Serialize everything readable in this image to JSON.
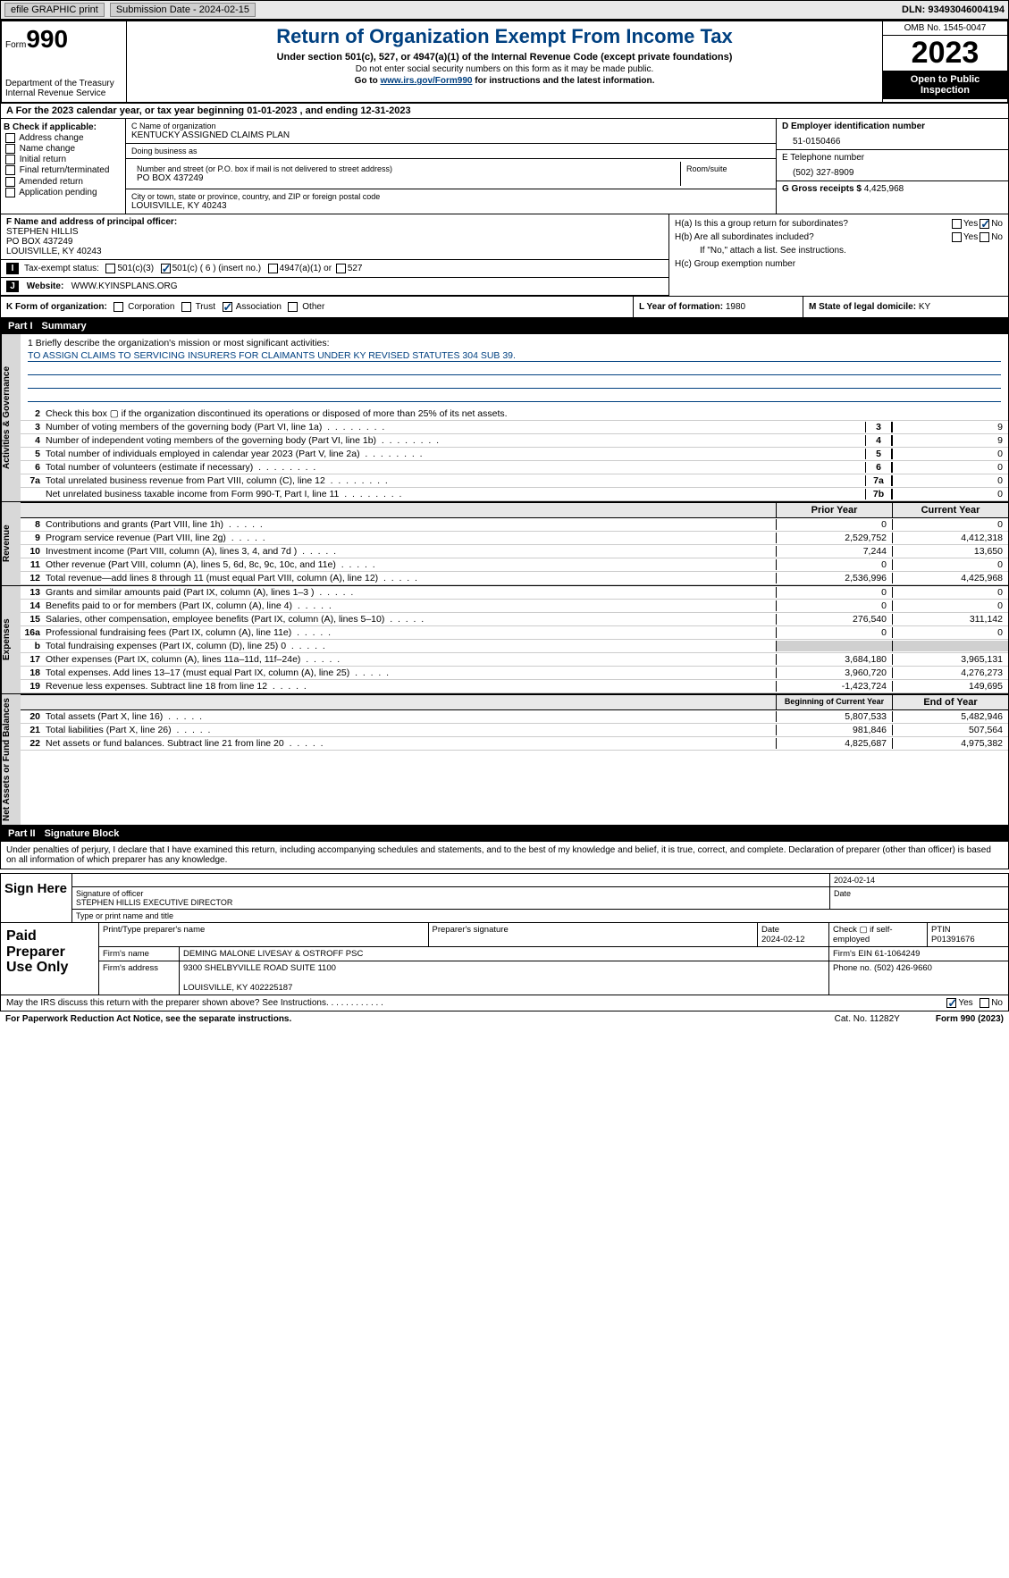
{
  "topbar": {
    "efile": "efile GRAPHIC print",
    "subdate_lbl": "Submission Date - ",
    "subdate": "2024-02-15",
    "dln_lbl": "DLN: ",
    "dln": "93493046004194"
  },
  "header": {
    "form_lbl": "Form",
    "form_no": "990",
    "dept": "Department of the Treasury\nInternal Revenue Service",
    "title": "Return of Organization Exempt From Income Tax",
    "sub": "Under section 501(c), 527, or 4947(a)(1) of the Internal Revenue Code (except private foundations)",
    "note1": "Do not enter social security numbers on this form as it may be made public.",
    "note2_pre": "Go to ",
    "note2_link": "www.irs.gov/Form990",
    "note2_post": " for instructions and the latest information.",
    "omb": "OMB No. 1545-0047",
    "year": "2023",
    "open": "Open to Public Inspection"
  },
  "rowA": {
    "text": "A For the 2023 calendar year, or tax year beginning 01-01-2023   , and ending 12-31-2023"
  },
  "colB": {
    "hdr": "B Check if applicable:",
    "items": [
      "Address change",
      "Name change",
      "Initial return",
      "Final return/terminated",
      "Amended return",
      "Application pending"
    ]
  },
  "colC": {
    "name_lbl": "C Name of organization",
    "name": "KENTUCKY ASSIGNED CLAIMS PLAN",
    "dba_lbl": "Doing business as",
    "dba": "",
    "street_lbl": "Number and street (or P.O. box if mail is not delivered to street address)",
    "street": "PO BOX 437249",
    "room_lbl": "Room/suite",
    "room": "",
    "city_lbl": "City or town, state or province, country, and ZIP or foreign postal code",
    "city": "LOUISVILLE, KY  40243"
  },
  "colD": {
    "ein_lbl": "D Employer identification number",
    "ein": "51-0150466",
    "tel_lbl": "E Telephone number",
    "tel": "(502) 327-8909",
    "gross_lbl": "G Gross receipts $ ",
    "gross": "4,425,968"
  },
  "officer": {
    "lbl": "F  Name and address of principal officer:",
    "name": "STEPHEN HILLIS",
    "street": "PO BOX 437249",
    "city": "LOUISVILLE, KY  40243"
  },
  "groupH": {
    "ha": "H(a)  Is this a group return for subordinates?",
    "hb": "H(b)  Are all subordinates included?",
    "hb_note": "If \"No,\" attach a list. See instructions.",
    "hc": "H(c)  Group exemption number",
    "yes": "Yes",
    "no": "No"
  },
  "taxI": {
    "lbl": "Tax-exempt status:",
    "o1": "501(c)(3)",
    "o2": "501(c) ( 6 ) (insert no.)",
    "o3": "4947(a)(1) or",
    "o4": "527"
  },
  "webJ": {
    "lbl": "Website:",
    "val": "WWW.KYINSPLANS.ORG"
  },
  "rowK": {
    "lbl": "K Form of organization:",
    "opts": [
      "Corporation",
      "Trust",
      "Association",
      "Other"
    ],
    "checked": 2
  },
  "rowL": {
    "lbl": "L Year of formation: ",
    "val": "1980"
  },
  "rowM": {
    "lbl": "M State of legal domicile: ",
    "val": "KY"
  },
  "part1": {
    "lbl": "Part I",
    "title": "Summary"
  },
  "mission": {
    "q": "1  Briefly describe the organization's mission or most significant activities:",
    "text": "TO ASSIGN CLAIMS TO SERVICING INSURERS FOR CLAIMANTS UNDER KY REVISED STATUTES 304 SUB 39."
  },
  "gov_lines": [
    {
      "n": "2",
      "t": "Check this box  ▢  if the organization discontinued its operations or disposed of more than 25% of its net assets."
    },
    {
      "n": "3",
      "t": "Number of voting members of the governing body (Part VI, line 1a)",
      "box": "3",
      "v": "9"
    },
    {
      "n": "4",
      "t": "Number of independent voting members of the governing body (Part VI, line 1b)",
      "box": "4",
      "v": "9"
    },
    {
      "n": "5",
      "t": "Total number of individuals employed in calendar year 2023 (Part V, line 2a)",
      "box": "5",
      "v": "0"
    },
    {
      "n": "6",
      "t": "Total number of volunteers (estimate if necessary)",
      "box": "6",
      "v": "0"
    },
    {
      "n": "7a",
      "t": "Total unrelated business revenue from Part VIII, column (C), line 12",
      "box": "7a",
      "v": "0"
    },
    {
      "n": "",
      "t": "Net unrelated business taxable income from Form 990-T, Part I, line 11",
      "box": "7b",
      "v": "0"
    }
  ],
  "thdr1": {
    "c1": "Prior Year",
    "c2": "Current Year"
  },
  "rev_lines": [
    {
      "n": "8",
      "t": "Contributions and grants (Part VIII, line 1h)",
      "p": "0",
      "c": "0"
    },
    {
      "n": "9",
      "t": "Program service revenue (Part VIII, line 2g)",
      "p": "2,529,752",
      "c": "4,412,318"
    },
    {
      "n": "10",
      "t": "Investment income (Part VIII, column (A), lines 3, 4, and 7d )",
      "p": "7,244",
      "c": "13,650"
    },
    {
      "n": "11",
      "t": "Other revenue (Part VIII, column (A), lines 5, 6d, 8c, 9c, 10c, and 11e)",
      "p": "0",
      "c": "0"
    },
    {
      "n": "12",
      "t": "Total revenue—add lines 8 through 11 (must equal Part VIII, column (A), line 12)",
      "p": "2,536,996",
      "c": "4,425,968"
    }
  ],
  "exp_lines": [
    {
      "n": "13",
      "t": "Grants and similar amounts paid (Part IX, column (A), lines 1–3 )",
      "p": "0",
      "c": "0"
    },
    {
      "n": "14",
      "t": "Benefits paid to or for members (Part IX, column (A), line 4)",
      "p": "0",
      "c": "0"
    },
    {
      "n": "15",
      "t": "Salaries, other compensation, employee benefits (Part IX, column (A), lines 5–10)",
      "p": "276,540",
      "c": "311,142"
    },
    {
      "n": "16a",
      "t": "Professional fundraising fees (Part IX, column (A), line 11e)",
      "p": "0",
      "c": "0"
    },
    {
      "n": "b",
      "t": "Total fundraising expenses (Part IX, column (D), line 25) 0",
      "p": "",
      "c": "",
      "gray": true
    },
    {
      "n": "17",
      "t": "Other expenses (Part IX, column (A), lines 11a–11d, 11f–24e)",
      "p": "3,684,180",
      "c": "3,965,131"
    },
    {
      "n": "18",
      "t": "Total expenses. Add lines 13–17 (must equal Part IX, column (A), line 25)",
      "p": "3,960,720",
      "c": "4,276,273"
    },
    {
      "n": "19",
      "t": "Revenue less expenses. Subtract line 18 from line 12",
      "p": "-1,423,724",
      "c": "149,695"
    }
  ],
  "thdr2": {
    "c1": "Beginning of Current Year",
    "c2": "End of Year"
  },
  "net_lines": [
    {
      "n": "20",
      "t": "Total assets (Part X, line 16)",
      "p": "5,807,533",
      "c": "5,482,946"
    },
    {
      "n": "21",
      "t": "Total liabilities (Part X, line 26)",
      "p": "981,846",
      "c": "507,564"
    },
    {
      "n": "22",
      "t": "Net assets or fund balances. Subtract line 21 from line 20",
      "p": "4,825,687",
      "c": "4,975,382"
    }
  ],
  "vtabs": {
    "gov": "Activities & Governance",
    "rev": "Revenue",
    "exp": "Expenses",
    "net": "Net Assets or Fund Balances"
  },
  "part2": {
    "lbl": "Part II",
    "title": "Signature Block"
  },
  "sig_decl": "Under penalties of perjury, I declare that I have examined this return, including accompanying schedules and statements, and to the best of my knowledge and belief, it is true, correct, and complete. Declaration of preparer (other than officer) is based on all information of which preparer has any knowledge.",
  "sign": {
    "here": "Sign Here",
    "sig_lbl": "Signature of officer",
    "date_lbl": "Date",
    "date": "2024-02-14",
    "name": "STEPHEN HILLIS  EXECUTIVE DIRECTOR",
    "name_lbl": "Type or print name and title"
  },
  "prep": {
    "title": "Paid Preparer Use Only",
    "h1": "Print/Type preparer's name",
    "h2": "Preparer's signature",
    "h3": "Date",
    "h3v": "2024-02-12",
    "h4": "Check ▢ if self-employed",
    "h5": "PTIN",
    "h5v": "P01391676",
    "firm_lbl": "Firm's name",
    "firm": "DEMING MALONE LIVESAY & OSTROFF PSC",
    "ein_lbl": "Firm's EIN",
    "ein": "61-1064249",
    "addr_lbl": "Firm's address",
    "addr": "9300 SHELBYVILLE ROAD SUITE 1100",
    "city": "LOUISVILLE, KY  402225187",
    "phone_lbl": "Phone no.",
    "phone": "(502) 426-9660"
  },
  "may": {
    "q": "May the IRS discuss this return with the preparer shown above? See Instructions.",
    "yes": "Yes",
    "no": "No"
  },
  "footer": {
    "pra": "For Paperwork Reduction Act Notice, see the separate instructions.",
    "cat": "Cat. No. 11282Y",
    "form": "Form 990 (2023)"
  }
}
